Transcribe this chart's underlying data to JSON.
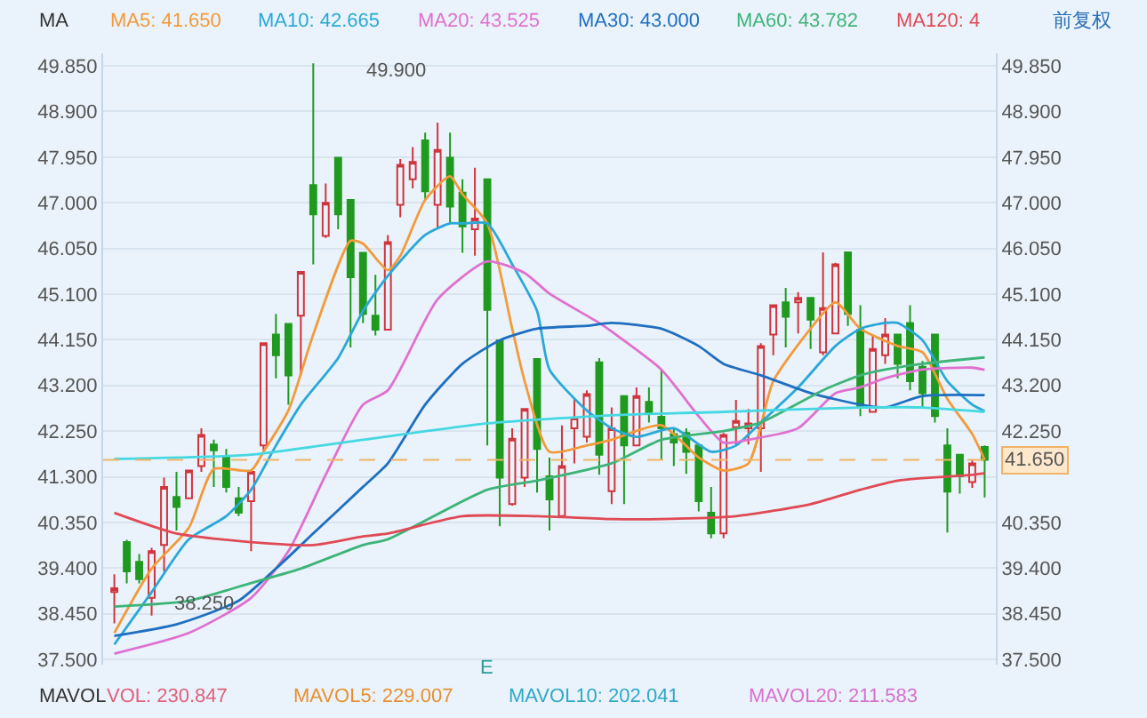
{
  "chart_data": {
    "type": "candlestick",
    "categories": [
      null,
      null,
      null,
      null,
      null,
      null,
      null,
      null,
      null,
      null,
      null,
      null,
      null,
      null,
      null,
      null,
      null,
      null,
      null,
      null,
      null,
      null,
      null,
      null,
      null,
      null,
      null,
      null,
      null,
      null,
      null,
      null,
      null,
      null,
      null,
      null,
      null,
      null,
      null,
      null,
      null,
      null,
      null,
      null,
      null,
      null,
      null,
      null,
      null,
      null,
      null,
      null,
      null,
      null,
      null,
      null,
      null,
      null,
      null,
      null,
      null,
      null,
      null,
      null,
      null,
      null,
      null,
      null,
      null,
      null,
      null
    ],
    "ohlc": [
      [
        38.9,
        39.27,
        38.25,
        38.98
      ],
      [
        39.94,
        39.99,
        39.08,
        39.33
      ],
      [
        39.53,
        39.69,
        39.08,
        39.17
      ],
      [
        38.78,
        39.82,
        38.41,
        39.75
      ],
      [
        39.88,
        41.28,
        39.33,
        41.09
      ],
      [
        40.88,
        41.4,
        40.18,
        40.67
      ],
      [
        40.85,
        41.43,
        40.85,
        41.43
      ],
      [
        41.52,
        42.31,
        41.4,
        42.17
      ],
      [
        41.97,
        42.07,
        41.09,
        41.85
      ],
      [
        41.7,
        41.88,
        40.97,
        41.09
      ],
      [
        40.85,
        41.09,
        40.48,
        40.55
      ],
      [
        40.79,
        41.4,
        39.75,
        41.4
      ],
      [
        41.95,
        44.08,
        41.82,
        44.08
      ],
      [
        44.26,
        44.69,
        43.35,
        43.83
      ],
      [
        44.48,
        44.48,
        42.8,
        43.41
      ],
      [
        44.65,
        45.56,
        43.41,
        45.56
      ],
      [
        47.37,
        49.9,
        45.72,
        46.76
      ],
      [
        46.31,
        47.4,
        46.27,
        47.0
      ],
      [
        47.94,
        47.94,
        46.45,
        46.76
      ],
      [
        47.06,
        47.06,
        43.99,
        45.45
      ],
      [
        45.96,
        45.96,
        44.5,
        44.69
      ],
      [
        44.65,
        45.5,
        44.24,
        44.36
      ],
      [
        44.36,
        46.33,
        44.36,
        46.18
      ],
      [
        46.96,
        47.91,
        46.7,
        47.79
      ],
      [
        47.49,
        48.16,
        47.3,
        47.85
      ],
      [
        48.3,
        48.46,
        47.06,
        47.24
      ],
      [
        46.96,
        48.67,
        46.45,
        48.1
      ],
      [
        47.94,
        48.46,
        46.57,
        46.92
      ],
      [
        47.21,
        47.49,
        45.96,
        46.51
      ],
      [
        46.45,
        47.73,
        45.9,
        46.67
      ],
      [
        47.49,
        47.49,
        41.95,
        44.77
      ],
      [
        44.14,
        44.14,
        40.27,
        41.28
      ],
      [
        40.73,
        42.31,
        40.7,
        42.09
      ],
      [
        41.28,
        42.71,
        41.09,
        42.71
      ],
      [
        43.75,
        43.75,
        40.97,
        41.88
      ],
      [
        41.31,
        41.7,
        40.18,
        40.83
      ],
      [
        40.48,
        42.37,
        40.48,
        41.52
      ],
      [
        42.31,
        42.92,
        41.58,
        42.53
      ],
      [
        42.13,
        43.1,
        42.01,
        43.02
      ],
      [
        43.68,
        43.77,
        41.34,
        41.76
      ],
      [
        41.0,
        42.74,
        40.73,
        42.31
      ],
      [
        42.98,
        42.98,
        40.73,
        41.95
      ],
      [
        41.95,
        43.16,
        41.95,
        42.98
      ],
      [
        42.86,
        43.16,
        42.43,
        42.62
      ],
      [
        42.55,
        43.53,
        41.64,
        42.31
      ],
      [
        42.19,
        42.31,
        41.52,
        42.01
      ],
      [
        42.21,
        42.31,
        41.36,
        41.82
      ],
      [
        41.95,
        41.95,
        40.58,
        40.79
      ],
      [
        40.55,
        41.09,
        40.02,
        40.12
      ],
      [
        40.12,
        42.21,
        40.02,
        42.17
      ],
      [
        42.33,
        42.9,
        41.97,
        42.46
      ],
      [
        42.31,
        42.71,
        41.97,
        42.41
      ],
      [
        42.31,
        44.08,
        41.4,
        44.02
      ],
      [
        44.26,
        44.87,
        43.83,
        44.87
      ],
      [
        44.93,
        45.23,
        43.99,
        44.63
      ],
      [
        44.93,
        45.14,
        44.28,
        45.02
      ],
      [
        45.02,
        45.02,
        43.96,
        44.57
      ],
      [
        43.89,
        45.97,
        43.83,
        44.81
      ],
      [
        44.28,
        45.75,
        44.28,
        45.72
      ],
      [
        45.97,
        45.97,
        44.44,
        44.69
      ],
      [
        44.36,
        44.87,
        42.56,
        42.74
      ],
      [
        42.65,
        44.26,
        42.65,
        43.96
      ],
      [
        43.83,
        44.6,
        43.65,
        44.26
      ],
      [
        44.26,
        44.26,
        43.35,
        43.65
      ],
      [
        44.5,
        44.87,
        43.1,
        43.29
      ],
      [
        43.59,
        43.71,
        42.74,
        43.04
      ],
      [
        44.26,
        44.26,
        42.43,
        42.56
      ],
      [
        41.95,
        42.31,
        40.14,
        40.99
      ],
      [
        41.76,
        41.76,
        40.95,
        41.31
      ],
      [
        41.19,
        41.64,
        41.07,
        41.58
      ],
      [
        41.92,
        41.95,
        40.87,
        41.65
      ]
    ],
    "series": [
      {
        "type": "line",
        "name": "MA5: 41.650",
        "color": "#f39a3a",
        "values": [
          38.05,
          null,
          null,
          39.39,
          null,
          null,
          40.24,
          null,
          41.46,
          null,
          null,
          41.43,
          41.82,
          null,
          42.68,
          null,
          44.26,
          null,
          null,
          46.21,
          46.15,
          null,
          45.6,
          45.9,
          null,
          47.06,
          null,
          47.55,
          47.18,
          null,
          46.57,
          null,
          44.38,
          43.29,
          null,
          41.82,
          null,
          null,
          41.95,
          null,
          42.07,
          null,
          null,
          null,
          42.37,
          null,
          null,
          41.7,
          null,
          41.43,
          null,
          41.58,
          null,
          43.29,
          null,
          null,
          44.38,
          null,
          44.93,
          null,
          44.38,
          null,
          null,
          44.02,
          null,
          43.89,
          null,
          42.92,
          null,
          42.19,
          41.65
        ]
      },
      {
        "type": "line",
        "name": "MA10: 42.665",
        "color": "#2aa8d8",
        "values": [
          37.81,
          null,
          null,
          38.9,
          null,
          null,
          40.0,
          null,
          null,
          40.48,
          null,
          41.03,
          null,
          41.95,
          null,
          42.8,
          null,
          null,
          43.77,
          null,
          44.75,
          null,
          45.48,
          null,
          null,
          46.33,
          null,
          46.57,
          46.57,
          null,
          46.57,
          null,
          45.72,
          null,
          44.75,
          43.53,
          null,
          null,
          42.68,
          null,
          42.31,
          null,
          42.13,
          null,
          null,
          42.31,
          null,
          null,
          41.82,
          null,
          41.95,
          null,
          42.43,
          null,
          null,
          43.16,
          null,
          null,
          44.02,
          null,
          44.38,
          null,
          44.5,
          44.5,
          null,
          44.14,
          null,
          43.29,
          null,
          42.8,
          42.665
        ]
      },
      {
        "type": "line",
        "name": "MA20: 43.525",
        "color": "#e070d0",
        "values": [
          37.62,
          null,
          null,
          null,
          null,
          null,
          38.05,
          null,
          null,
          null,
          null,
          38.78,
          null,
          null,
          39.75,
          null,
          null,
          41.34,
          null,
          null,
          42.8,
          null,
          43.1,
          null,
          null,
          null,
          44.99,
          null,
          null,
          null,
          45.78,
          null,
          null,
          45.54,
          null,
          45.11,
          null,
          null,
          null,
          44.5,
          44.32,
          null,
          null,
          null,
          43.53,
          null,
          null,
          42.56,
          null,
          42.01,
          null,
          42.07,
          null,
          null,
          null,
          42.31,
          null,
          null,
          43.04,
          null,
          43.16,
          null,
          43.35,
          null,
          null,
          43.53,
          null,
          null,
          null,
          43.57,
          43.525
        ]
      },
      {
        "type": "line",
        "name": "MA30: 43.000",
        "color": "#1f6fc0",
        "values": [
          37.99,
          null,
          null,
          null,
          null,
          38.23,
          null,
          null,
          null,
          null,
          38.72,
          null,
          null,
          39.39,
          null,
          null,
          40.12,
          null,
          null,
          null,
          41.09,
          null,
          41.58,
          null,
          null,
          42.8,
          null,
          null,
          43.65,
          null,
          null,
          44.14,
          null,
          null,
          44.38,
          null,
          null,
          null,
          44.44,
          null,
          44.5,
          null,
          null,
          null,
          44.38,
          null,
          null,
          44.02,
          null,
          43.65,
          null,
          null,
          43.41,
          null,
          null,
          null,
          43.04,
          null,
          null,
          null,
          42.8,
          null,
          42.74,
          null,
          null,
          42.98,
          null,
          null,
          null,
          null,
          43.0
        ]
      },
      {
        "type": "line",
        "name": "MA60: 43.782",
        "color": "#3eb478",
        "values": [
          38.6,
          null,
          null,
          null,
          null,
          null,
          38.72,
          null,
          null,
          null,
          null,
          39.09,
          null,
          null,
          null,
          39.39,
          null,
          null,
          null,
          null,
          39.88,
          null,
          40.0,
          null,
          null,
          null,
          null,
          null,
          null,
          null,
          41.03,
          null,
          null,
          null,
          41.22,
          null,
          null,
          null,
          null,
          null,
          41.58,
          null,
          null,
          null,
          42.07,
          null,
          null,
          null,
          null,
          42.25,
          null,
          null,
          42.43,
          null,
          null,
          null,
          null,
          43.1,
          null,
          null,
          43.41,
          null,
          43.53,
          null,
          null,
          43.65,
          null,
          null,
          null,
          null,
          43.782
        ]
      },
      {
        "type": "line",
        "name": "MA120: 4",
        "color": "#e04a55",
        "values": [
          40.55,
          null,
          null,
          null,
          null,
          40.12,
          null,
          null,
          null,
          null,
          null,
          39.94,
          null,
          null,
          null,
          null,
          39.88,
          null,
          null,
          null,
          40.06,
          null,
          40.12,
          null,
          null,
          null,
          null,
          null,
          40.48,
          null,
          null,
          null,
          null,
          null,
          40.48,
          null,
          null,
          null,
          null,
          null,
          40.42,
          null,
          null,
          null,
          40.42,
          null,
          null,
          null,
          null,
          null,
          40.48,
          null,
          null,
          null,
          null,
          null,
          40.73,
          null,
          null,
          null,
          41.03,
          null,
          null,
          41.22,
          null,
          null,
          null,
          null,
          null,
          41.34,
          41.37
        ]
      },
      {
        "type": "line",
        "color": "#45d8e2",
        "values": [
          41.67,
          null,
          null,
          null,
          null,
          null,
          null,
          null,
          null,
          null,
          null,
          41.76,
          null,
          null,
          null,
          null,
          null,
          null,
          null,
          null,
          42.07,
          null,
          null,
          null,
          null,
          null,
          null,
          null,
          null,
          null,
          42.41,
          null,
          null,
          null,
          null,
          null,
          null,
          null,
          null,
          null,
          42.58,
          null,
          null,
          null,
          null,
          null,
          null,
          null,
          null,
          42.65,
          null,
          null,
          null,
          null,
          null,
          null,
          null,
          null,
          null,
          null,
          42.74,
          null,
          null,
          null,
          null,
          42.74,
          null,
          null,
          null,
          null,
          42.65
        ]
      }
    ],
    "ylim": [
      37.39,
      50.11
    ],
    "yticks": [
      {
        "value": 37.5,
        "label": "37.500"
      },
      {
        "value": 38.45,
        "label": "38.450"
      },
      {
        "value": 39.4,
        "label": "39.400"
      },
      {
        "value": 40.35,
        "label": "40.350"
      },
      {
        "value": 41.3,
        "label": "41.300"
      },
      {
        "value": 42.25,
        "label": "42.250"
      },
      {
        "value": 43.2,
        "label": "43.200"
      },
      {
        "value": 44.15,
        "label": "44.150"
      },
      {
        "value": 45.1,
        "label": "45.100"
      },
      {
        "value": 46.05,
        "label": "46.050"
      },
      {
        "value": 47.0,
        "label": "47.000"
      },
      {
        "value": 47.95,
        "label": "47.950"
      },
      {
        "value": 48.9,
        "label": "48.900"
      },
      {
        "value": 49.85,
        "label": "49.850"
      }
    ],
    "y2lim": [
      37.39,
      50.11
    ],
    "y2ticks": [
      {
        "value": 37.5,
        "label": "37.500"
      },
      {
        "value": 38.45,
        "label": "38.450"
      },
      {
        "value": 39.4,
        "label": "39.400"
      },
      {
        "value": 40.35,
        "label": "40.350"
      },
      {
        "value": 41.3,
        "label": null
      },
      {
        "value": 42.25,
        "label": "42.250"
      },
      {
        "value": 43.2,
        "label": "43.200"
      },
      {
        "value": 44.15,
        "label": "44.150"
      },
      {
        "value": 45.1,
        "label": "45.100"
      },
      {
        "value": 46.05,
        "label": "46.050"
      },
      {
        "value": 47.0,
        "label": "47.000"
      },
      {
        "value": 47.95,
        "label": "47.950"
      },
      {
        "value": 48.9,
        "label": "48.900"
      },
      {
        "value": 49.85,
        "label": "49.850"
      }
    ],
    "ref_lines": [
      {
        "axis": "y",
        "value": 41.65,
        "label": "41.650",
        "color": "#f0b468",
        "line_style": "dashed"
      }
    ],
    "annotations": [
      "MA",
      "前复权",
      "E",
      "MAVOL",
      "VOL: 230.847",
      "MAVOL5: 229.007",
      "MAVOL10: 202.041",
      "MAVOL20: 211.583",
      "49.900",
      "38.250"
    ],
    "grid": "y",
    "legend": "top"
  }
}
